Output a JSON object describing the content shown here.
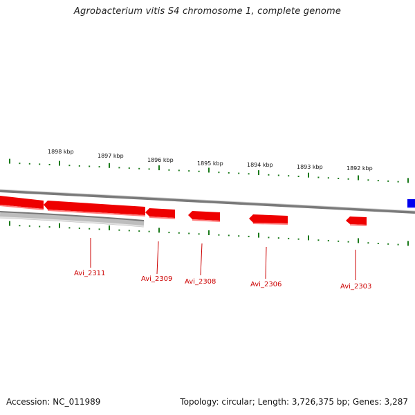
{
  "title": "Agrobacterium vitis S4 chromosome 1, complete genome",
  "footer": {
    "accession": "Accession: NC_011989",
    "summary": "Topology: circular; Length: 3,726,375 bp; Genes: 3,287"
  },
  "colors": {
    "gene_forward": "#0000ee",
    "gene_reverse": "#ee0000",
    "gene_label": "#cc0000",
    "tick": "#1a7a1a",
    "backbone": "#888888",
    "pseudo_track": "#bbbbbb"
  },
  "scale_labels": [
    "1898 kbp",
    "1897 kbp",
    "1896 kbp",
    "1895 kbp",
    "1894 kbp",
    "1893 kbp",
    "1892 kbp"
  ],
  "genes": [
    {
      "label": "Avi_2311",
      "strand": "reverse"
    },
    {
      "label": "Avi_2309",
      "strand": "reverse"
    },
    {
      "label": "Avi_2308",
      "strand": "reverse"
    },
    {
      "label": "Avi_2306",
      "strand": "reverse"
    },
    {
      "label": "Avi_2303",
      "strand": "reverse"
    }
  ]
}
